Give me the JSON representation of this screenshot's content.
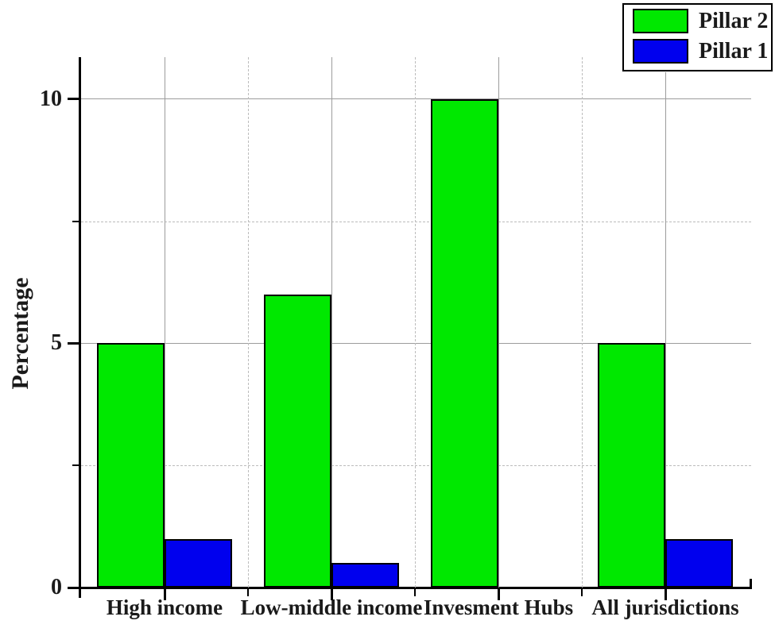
{
  "figure": {
    "ylabel": "Percentage"
  },
  "legend": {
    "items": [
      {
        "label": "Pillar 2",
        "color": "#00e800"
      },
      {
        "label": "Pillar 1",
        "color": "#0000ee"
      }
    ]
  },
  "chart_data": {
    "type": "bar",
    "title": "",
    "xlabel": "",
    "ylabel": "Percentage",
    "categories": [
      "High income",
      "Low-middle income",
      "Invesment Hubs",
      "All jurisdictions"
    ],
    "series": [
      {
        "name": "Pillar 2",
        "color": "#00e800",
        "values": [
          5,
          6,
          10,
          5
        ]
      },
      {
        "name": "Pillar 1",
        "color": "#0000ee",
        "values": [
          1,
          0.5,
          0,
          1
        ]
      }
    ],
    "ylim": [
      0,
      10.86
    ],
    "yticks_major": [
      0,
      5,
      10
    ],
    "yticks_minor": [
      2.5,
      7.5
    ],
    "grid": {
      "major_style": "solid",
      "minor_style": "dashed",
      "vertical_major_at": "category-centers",
      "vertical_minor_at": "category-boundaries"
    },
    "legend_position": "top-right",
    "bar_edge_color": "#000000"
  }
}
